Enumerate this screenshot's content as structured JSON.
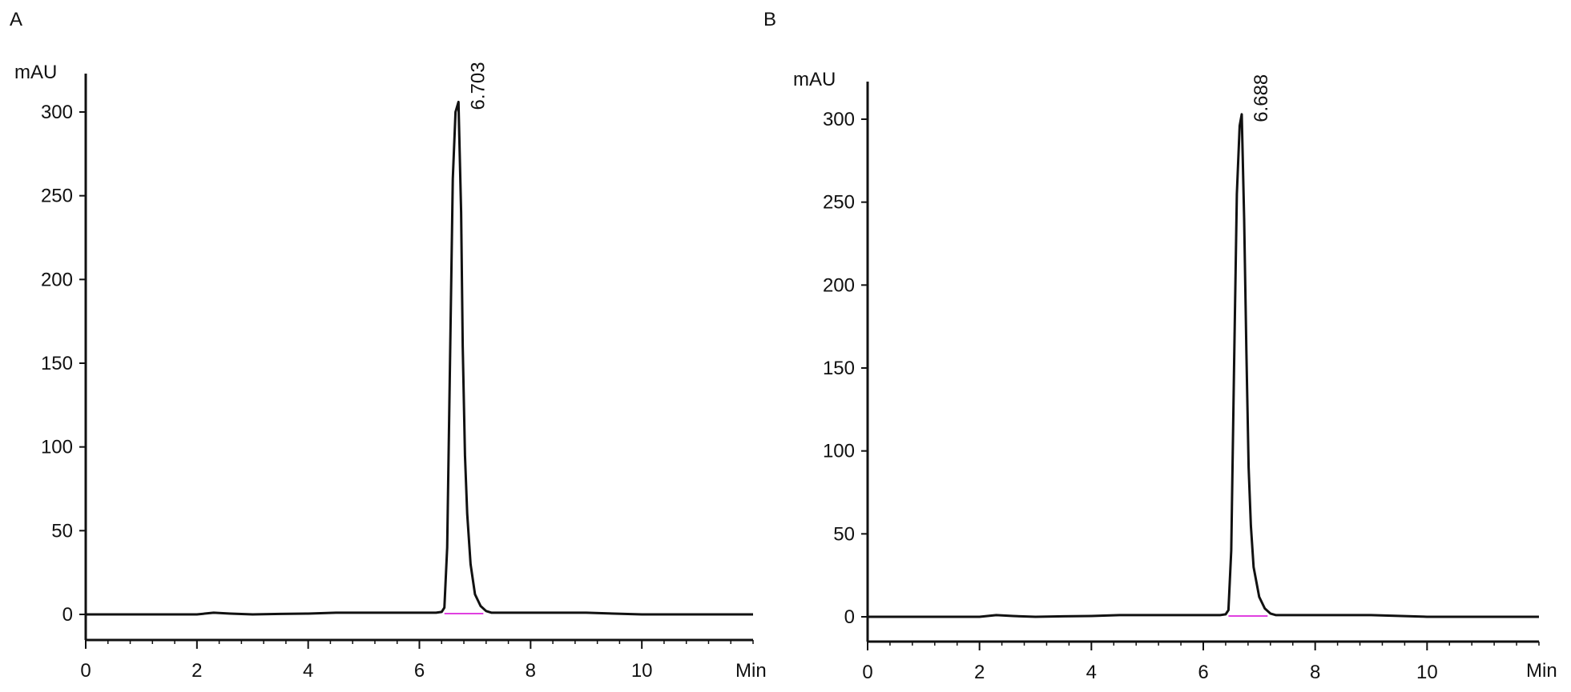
{
  "colors": {
    "trace": "#111111",
    "baseline_marker": "#e040e0",
    "axis": "#111111",
    "background": "#ffffff"
  },
  "chart_data": [
    {
      "type": "line",
      "panel_label": "A",
      "title": "",
      "xlabel": "Min",
      "ylabel": "mAU",
      "xlim": [
        0,
        12
      ],
      "ylim": [
        -15,
        320
      ],
      "x_ticks": [
        0,
        2,
        4,
        6,
        8,
        10
      ],
      "x_tick_labels": [
        "0",
        "2",
        "4",
        "6",
        "8",
        "10"
      ],
      "x_minor_step": 0.4,
      "y_ticks": [
        0,
        50,
        100,
        150,
        200,
        250,
        300
      ],
      "y_tick_labels": [
        "0",
        "50",
        "100",
        "150",
        "200",
        "250",
        "300"
      ],
      "grid": false,
      "legend": "none",
      "peak": {
        "retention_time": 6.703,
        "label": "6.703",
        "height_mAU": 306,
        "integration_baseline_x": [
          6.45,
          7.15
        ]
      },
      "series": [
        {
          "x": [
            0,
            1,
            2,
            2.3,
            2.6,
            3,
            3.5,
            4,
            4.5,
            5,
            5.5,
            6,
            6.3,
            6.4,
            6.45,
            6.5,
            6.55,
            6.6,
            6.65,
            6.703,
            6.75,
            6.78,
            6.82,
            6.86,
            6.92,
            7.0,
            7.1,
            7.2,
            7.3,
            7.5,
            8,
            9,
            10,
            10.5,
            11,
            12
          ],
          "y": [
            0,
            0,
            0,
            1,
            0.5,
            0,
            0.3,
            0.5,
            1,
            1,
            1,
            1,
            1,
            1.5,
            4,
            40,
            150,
            260,
            300,
            306,
            240,
            160,
            95,
            60,
            30,
            12,
            5,
            2,
            1,
            1,
            1,
            1,
            0,
            0,
            0,
            0
          ]
        }
      ]
    },
    {
      "type": "line",
      "panel_label": "B",
      "title": "",
      "xlabel": "Min",
      "ylabel": "mAU",
      "xlim": [
        0,
        12
      ],
      "ylim": [
        -15,
        320
      ],
      "x_ticks": [
        0,
        2,
        4,
        6,
        8,
        10
      ],
      "x_tick_labels": [
        "0",
        "2",
        "4",
        "6",
        "8",
        "10"
      ],
      "x_minor_step": 0.4,
      "y_ticks": [
        0,
        50,
        100,
        150,
        200,
        250,
        300
      ],
      "y_tick_labels": [
        "0",
        "50",
        "100",
        "150",
        "200",
        "250",
        "300"
      ],
      "grid": false,
      "legend": "none",
      "peak": {
        "retention_time": 6.688,
        "label": "6.688",
        "height_mAU": 303,
        "integration_baseline_x": [
          6.45,
          7.15
        ]
      },
      "series": [
        {
          "x": [
            0,
            1,
            2,
            2.3,
            2.6,
            3,
            3.5,
            4,
            4.5,
            5,
            5.5,
            6,
            6.3,
            6.4,
            6.45,
            6.5,
            6.55,
            6.6,
            6.65,
            6.688,
            6.73,
            6.77,
            6.81,
            6.85,
            6.9,
            7.0,
            7.1,
            7.2,
            7.3,
            7.5,
            8,
            9,
            10,
            10.5,
            11,
            12
          ],
          "y": [
            0,
            0,
            0,
            1,
            0.5,
            0,
            0.3,
            0.5,
            1,
            1,
            1,
            1,
            1,
            1.5,
            4,
            40,
            150,
            255,
            296,
            303,
            240,
            160,
            90,
            55,
            30,
            12,
            5,
            2,
            1,
            1,
            1,
            1,
            0,
            0,
            0,
            0
          ]
        }
      ]
    }
  ]
}
